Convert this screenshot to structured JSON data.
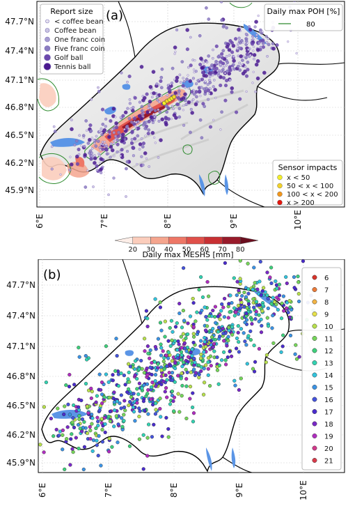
{
  "panel_a": {
    "label": "(a)",
    "report_legend": {
      "title": "Report size",
      "items": [
        {
          "label": "< coffee bean",
          "color": "#e7e4f1"
        },
        {
          "label": "Coffee bean",
          "color": "#cbc6e3"
        },
        {
          "label": "One franc coin",
          "color": "#a89ed1"
        },
        {
          "label": "Five franc coin",
          "color": "#8b7cc0"
        },
        {
          "label": "Golf ball",
          "color": "#6c49ad"
        },
        {
          "label": "Tennis ball",
          "color": "#4b1a8f"
        }
      ]
    },
    "poh_legend": {
      "title": "Daily max POH [%]",
      "line_label": "80",
      "color": "#2e8b2e"
    },
    "sensor_legend": {
      "title": "Sensor impacts",
      "items": [
        {
          "label": "x < 50",
          "color": "#f2ee2a"
        },
        {
          "label": "50 < x < 100",
          "color": "#f2d22a"
        },
        {
          "label": "100 < x < 200",
          "color": "#f2961c"
        },
        {
          "label": "x > 200",
          "color": "#e3160e"
        }
      ]
    },
    "y_ticks": [
      "47.7°N",
      "47.4°N",
      "47.1°N",
      "46.8°N",
      "46.5°N",
      "46.2°N",
      "45.9°N"
    ],
    "x_ticks": [
      "6°E",
      "7°E",
      "8°E",
      "9°E",
      "10°E"
    ],
    "colorbar": {
      "label": "Daily max MESHS [mm]",
      "ticks": [
        "20",
        "30",
        "40",
        "50",
        "60",
        "70",
        "80"
      ],
      "colors": [
        "#fdeee8",
        "#fbcdbc",
        "#f5a58e",
        "#ee7766",
        "#e0504a",
        "#c83033",
        "#981a2a",
        "#6b0f1f"
      ]
    }
  },
  "panel_b": {
    "label": "(b)",
    "y_ticks": [
      "47.7°N",
      "47.4°N",
      "47.1°N",
      "46.8°N",
      "46.5°N",
      "46.2°N",
      "45.9°N"
    ],
    "x_ticks": [
      "6°E",
      "7°E",
      "8°E",
      "9°E",
      "10°E"
    ],
    "hour_legend": [
      {
        "label": "6",
        "color": "#d9342b"
      },
      {
        "label": "7",
        "color": "#ec7a37"
      },
      {
        "label": "8",
        "color": "#f3b545"
      },
      {
        "label": "9",
        "color": "#e7e24a"
      },
      {
        "label": "10",
        "color": "#b8e04d"
      },
      {
        "label": "11",
        "color": "#76d55a"
      },
      {
        "label": "12",
        "color": "#3fd07c"
      },
      {
        "label": "13",
        "color": "#33d3b2"
      },
      {
        "label": "14",
        "color": "#32c4dd"
      },
      {
        "label": "15",
        "color": "#3b93e5"
      },
      {
        "label": "16",
        "color": "#4553dd"
      },
      {
        "label": "17",
        "color": "#4a2ccd"
      },
      {
        "label": "18",
        "color": "#7a29c8"
      },
      {
        "label": "19",
        "color": "#b02ec0"
      },
      {
        "label": "20",
        "color": "#d33a8c"
      },
      {
        "label": "21",
        "color": "#d93a4a"
      }
    ]
  }
}
